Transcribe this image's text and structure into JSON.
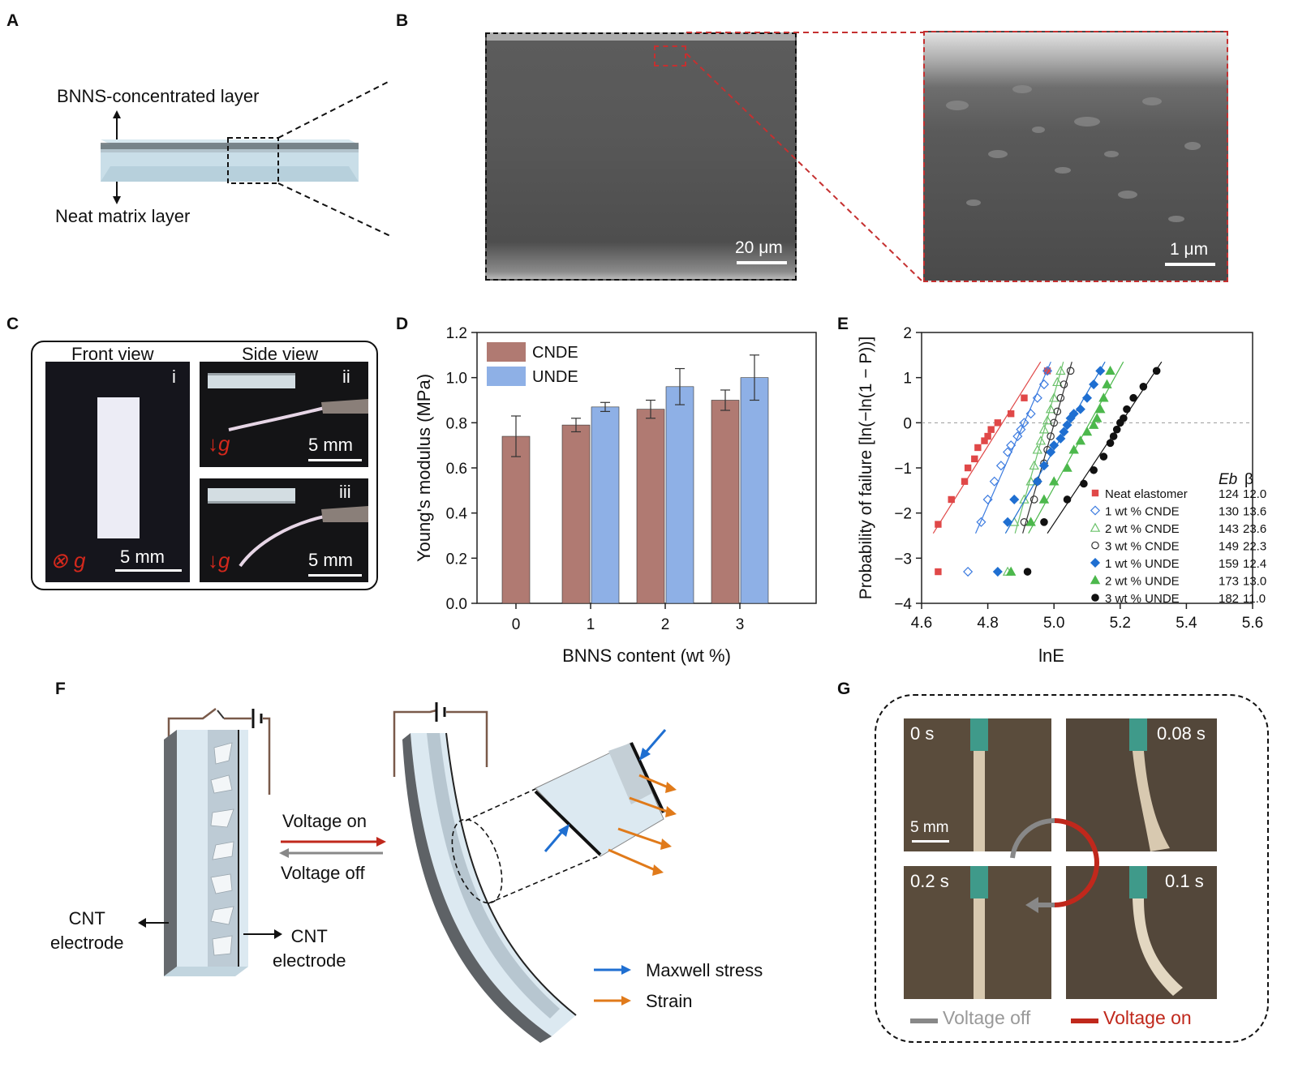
{
  "panels": {
    "A": "A",
    "B": "B",
    "C": "C",
    "D": "D",
    "E": "E",
    "F": "F",
    "G": "G"
  },
  "panel_a": {
    "top_label": "BNNS-concentrated layer",
    "bottom_label": "Neat matrix layer"
  },
  "panel_b": {
    "scale_left": "20 μm",
    "scale_right": "1 μm"
  },
  "panel_c": {
    "front_view": "Front view",
    "side_view": "Side view",
    "tag_i": "i",
    "tag_ii": "ii",
    "tag_iii": "iii",
    "g_symbol": "⊗ g",
    "g_arrow": "↓g",
    "scale_i": "5 mm",
    "scale_ii": "5 mm",
    "scale_iii": "5 mm"
  },
  "panel_d_text": {
    "ylabel": "Young's modulus (MPa)",
    "xlabel": "BNNS content (wt %)"
  },
  "panel_e_text": {
    "ylabel": "Probability of failure [ln(−ln(1 − P))]",
    "xlabel": "lnE",
    "col_eb": "Eb",
    "col_beta": "β"
  },
  "panel_f": {
    "voltage_on": "Voltage on",
    "voltage_off": "Voltage off",
    "cnt_left": "CNT\nelectrode",
    "cnt_right": "CNT\nelectrode",
    "legend_maxwell": "Maxwell stress",
    "legend_strain": "Strain"
  },
  "panel_g": {
    "t0": "0 s",
    "t1": "0.08 s",
    "t2": "0.1 s",
    "t3": "0.2 s",
    "scale": "5 mm",
    "legend_off": "Voltage off",
    "legend_on": "Voltage on"
  },
  "colors": {
    "cnde": "#b07a72",
    "unde": "#8eb0e6",
    "on": "#c0281c",
    "off": "#888888",
    "maxwell": "#1f6fd1",
    "strain": "#e07a1a",
    "sem_border_b": "#c53030"
  },
  "chart_data": [
    {
      "type": "bar",
      "categories": [
        "0",
        "1",
        "2",
        "3"
      ],
      "series": [
        {
          "name": "CNDE",
          "values": [
            0.74,
            0.79,
            0.86,
            0.9
          ],
          "errors": [
            0.09,
            0.03,
            0.04,
            0.045
          ]
        },
        {
          "name": "UNDE",
          "values": [
            null,
            0.87,
            0.96,
            1.0
          ],
          "errors": [
            null,
            0.02,
            0.08,
            0.1
          ]
        }
      ],
      "xlabel": "BNNS content (wt %)",
      "ylabel": "Young's modulus (MPa)",
      "ylim": [
        0,
        1.2
      ],
      "yticks": [
        "0.0",
        "0.2",
        "0.4",
        "0.6",
        "0.8",
        "1.0",
        "1.2"
      ],
      "legend": "top-left"
    },
    {
      "type": "scatter",
      "xlabel": "lnE",
      "ylabel": "Probability of failure [ln(−ln(1 − P))]",
      "xlim": [
        4.6,
        5.6
      ],
      "ylim": [
        -4,
        2
      ],
      "xticks": [
        "4.6",
        "4.8",
        "5.0",
        "5.2",
        "5.4",
        "5.6"
      ],
      "yticks": [
        "−4",
        "−3",
        "−2",
        "−1",
        "0",
        "1",
        "2"
      ],
      "reference_line": 0,
      "series": [
        {
          "name": "Neat elastomer",
          "Eb": "124",
          "beta": "12.0",
          "color": "#e04848",
          "marker": "square",
          "x": [
            4.65,
            4.65,
            4.69,
            4.73,
            4.74,
            4.76,
            4.77,
            4.79,
            4.8,
            4.81,
            4.83,
            4.87,
            4.91,
            4.98
          ],
          "y": [
            -3.3,
            -2.25,
            -1.7,
            -1.3,
            -1.0,
            -0.8,
            -0.55,
            -0.4,
            -0.3,
            -0.15,
            0.0,
            0.2,
            0.55,
            1.15
          ]
        },
        {
          "name": "1 wt % CNDE",
          "Eb": "130",
          "beta": "13.6",
          "color": "#3d7ce0",
          "marker": "diamond-open",
          "x": [
            4.74,
            4.78,
            4.8,
            4.82,
            4.84,
            4.86,
            4.87,
            4.89,
            4.9,
            4.91,
            4.93,
            4.95,
            4.97,
            4.98
          ],
          "y": [
            -3.3,
            -2.2,
            -1.7,
            -1.3,
            -0.95,
            -0.65,
            -0.5,
            -0.3,
            -0.15,
            0.0,
            0.2,
            0.55,
            0.85,
            1.15
          ]
        },
        {
          "name": "2 wt % CNDE",
          "Eb": "143",
          "beta": "23.6",
          "color": "#6cc26c",
          "marker": "triangle-open",
          "x": [
            4.86,
            4.88,
            4.91,
            4.93,
            4.94,
            4.95,
            4.96,
            4.97,
            4.98,
            4.99,
            5.0,
            5.01,
            5.02
          ],
          "y": [
            -3.3,
            -2.2,
            -1.7,
            -1.3,
            -0.95,
            -0.6,
            -0.4,
            -0.15,
            0.05,
            0.3,
            0.55,
            0.9,
            1.15
          ]
        },
        {
          "name": "3 wt % CNDE",
          "Eb": "149",
          "beta": "22.3",
          "color": "#333333",
          "marker": "circle-open",
          "x": [
            4.91,
            4.94,
            4.95,
            4.97,
            4.98,
            4.99,
            5.0,
            5.01,
            5.02,
            5.03,
            5.05
          ],
          "y": [
            -2.2,
            -1.7,
            -1.3,
            -0.9,
            -0.6,
            -0.3,
            0.0,
            0.25,
            0.55,
            0.85,
            1.15
          ]
        },
        {
          "name": "1 wt % UNDE",
          "Eb": "159",
          "beta": "12.4",
          "color": "#1f6fd1",
          "marker": "diamond",
          "x": [
            4.83,
            4.86,
            4.88,
            4.95,
            4.97,
            4.99,
            5.0,
            5.02,
            5.03,
            5.04,
            5.05,
            5.06,
            5.08,
            5.1,
            5.12,
            5.14
          ],
          "y": [
            -3.3,
            -2.2,
            -1.7,
            -1.3,
            -0.95,
            -0.65,
            -0.5,
            -0.35,
            -0.2,
            -0.05,
            0.1,
            0.2,
            0.3,
            0.55,
            0.85,
            1.15
          ]
        },
        {
          "name": "2 wt % UNDE",
          "Eb": "173",
          "beta": "13.0",
          "color": "#4cb84c",
          "marker": "triangle",
          "x": [
            4.87,
            4.93,
            4.97,
            5.0,
            5.04,
            5.06,
            5.08,
            5.1,
            5.12,
            5.13,
            5.14,
            5.15,
            5.16,
            5.17
          ],
          "y": [
            -3.3,
            -2.2,
            -1.7,
            -1.3,
            -1.0,
            -0.6,
            -0.4,
            -0.2,
            -0.05,
            0.1,
            0.3,
            0.55,
            0.85,
            1.15
          ]
        },
        {
          "name": "3 wt % UNDE",
          "Eb": "182",
          "beta": "11.0",
          "color": "#111111",
          "marker": "circle",
          "x": [
            4.92,
            4.97,
            5.04,
            5.09,
            5.12,
            5.15,
            5.17,
            5.18,
            5.19,
            5.2,
            5.21,
            5.22,
            5.24,
            5.27,
            5.31
          ],
          "y": [
            -3.3,
            -2.2,
            -1.7,
            -1.35,
            -1.05,
            -0.75,
            -0.45,
            -0.3,
            -0.15,
            0.0,
            0.1,
            0.3,
            0.55,
            0.8,
            1.15
          ]
        }
      ]
    }
  ]
}
